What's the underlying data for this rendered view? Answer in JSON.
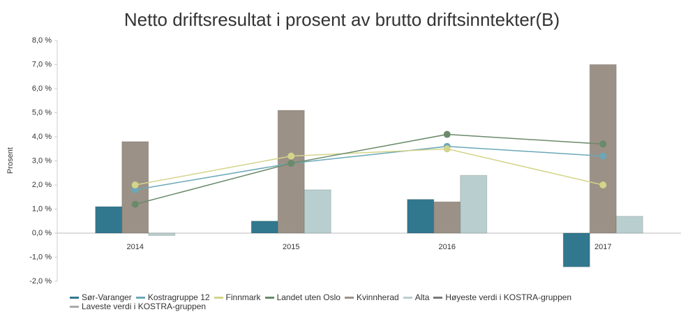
{
  "chart_data": {
    "type": "bar",
    "title": "Netto driftsresultat i prosent av brutto driftsinntekter(B)",
    "y_label": "Prosent",
    "categories": [
      "2014",
      "2015",
      "2016",
      "2017"
    ],
    "ylim": [
      -2,
      8
    ],
    "yticks": [
      {
        "value": -2,
        "label": "-2,0 %"
      },
      {
        "value": -1,
        "label": "-1,0 %"
      },
      {
        "value": 0,
        "label": "0,0 %"
      },
      {
        "value": 1,
        "label": "1,0 %"
      },
      {
        "value": 2,
        "label": "2,0 %"
      },
      {
        "value": 3,
        "label": "3,0 %"
      },
      {
        "value": 4,
        "label": "4,0 %"
      },
      {
        "value": 5,
        "label": "5,0 %"
      },
      {
        "value": 6,
        "label": "6,0 %"
      },
      {
        "value": 7,
        "label": "7,0 %"
      },
      {
        "value": 8,
        "label": "8,0 %"
      }
    ],
    "series": [
      {
        "name": "Sør-Varanger",
        "kind": "bar",
        "color": "#31788f",
        "values": [
          1.1,
          0.5,
          1.4,
          -1.4
        ]
      },
      {
        "name": "Kostragruppe 12",
        "kind": "line",
        "color": "#6aa8b8",
        "values": [
          1.8,
          2.9,
          3.6,
          3.2
        ]
      },
      {
        "name": "Finnmark",
        "kind": "line",
        "color": "#d4d48a",
        "values": [
          2.0,
          3.2,
          3.5,
          2.0
        ]
      },
      {
        "name": "Landet uten Oslo",
        "kind": "line",
        "color": "#6a8a6a",
        "values": [
          1.2,
          2.9,
          4.1,
          3.7
        ]
      },
      {
        "name": "Kvinnherad",
        "kind": "bar",
        "color": "#9c9186",
        "values": [
          3.8,
          5.1,
          1.3,
          7.0
        ]
      },
      {
        "name": "Alta",
        "kind": "bar",
        "color": "#b9cfcf",
        "values": [
          -0.1,
          1.8,
          2.4,
          0.7
        ]
      },
      {
        "name": "Høyeste verdi i KOSTRA-gruppen",
        "kind": "line",
        "color": "#777777",
        "values": [
          null,
          null,
          null,
          null
        ]
      },
      {
        "name": "Laveste verdi i KOSTRA-gruppen",
        "kind": "line",
        "color": "#aaaaaa",
        "values": [
          null,
          null,
          null,
          null
        ]
      }
    ]
  }
}
